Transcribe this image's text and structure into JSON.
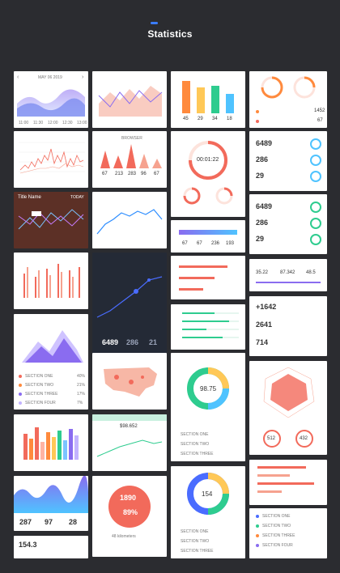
{
  "page": {
    "title": "Statistics"
  },
  "col1": {
    "wave_times": [
      "11:00",
      "11:30",
      "12:00",
      "12:30",
      "13:00"
    ],
    "bars_values": [
      "287",
      "97",
      "28"
    ],
    "final_value": "154.3",
    "dark_title": "Title Name",
    "dark_toggle": "TODAY"
  },
  "col2": {
    "stats": [
      "67",
      "213",
      "283",
      "96",
      "67"
    ],
    "big_vals": {
      "views": "6489",
      "likes": "286",
      "users": "21"
    },
    "price": "$98.652",
    "distance": "1890",
    "percent": "89%",
    "km": "48 kilometers"
  },
  "col3": {
    "bar_vals": [
      "45",
      "29",
      "34",
      "18"
    ],
    "timer": "00:01:22",
    "counting_vals": [
      "67",
      "67",
      "236",
      "193"
    ],
    "donut1": "98.75",
    "donut2": "154"
  },
  "col4": {
    "followers": "1452",
    "change": "67",
    "metrics": [
      "6489",
      "286",
      "29"
    ],
    "metrics2": [
      "6489",
      "286",
      "29"
    ],
    "triple": [
      "35.22",
      "87.342",
      "48.5"
    ],
    "plus": "+1642",
    "v2": "2641",
    "v3": "714",
    "radar_a": "512",
    "radar_b": "432"
  },
  "legend": {
    "sections": [
      "SECTION ONE",
      "SECTION TWO",
      "SECTION THREE",
      "SECTION FOUR"
    ],
    "pcts": [
      "40%",
      "21%",
      "17%",
      "7%"
    ]
  },
  "colors": {
    "bg": "#2b2c30",
    "accent": "#3b7dff",
    "coral": "#f26a5b",
    "purple": "#8a6cf0",
    "green": "#2ecc8f",
    "orange": "#ff8a3d"
  }
}
